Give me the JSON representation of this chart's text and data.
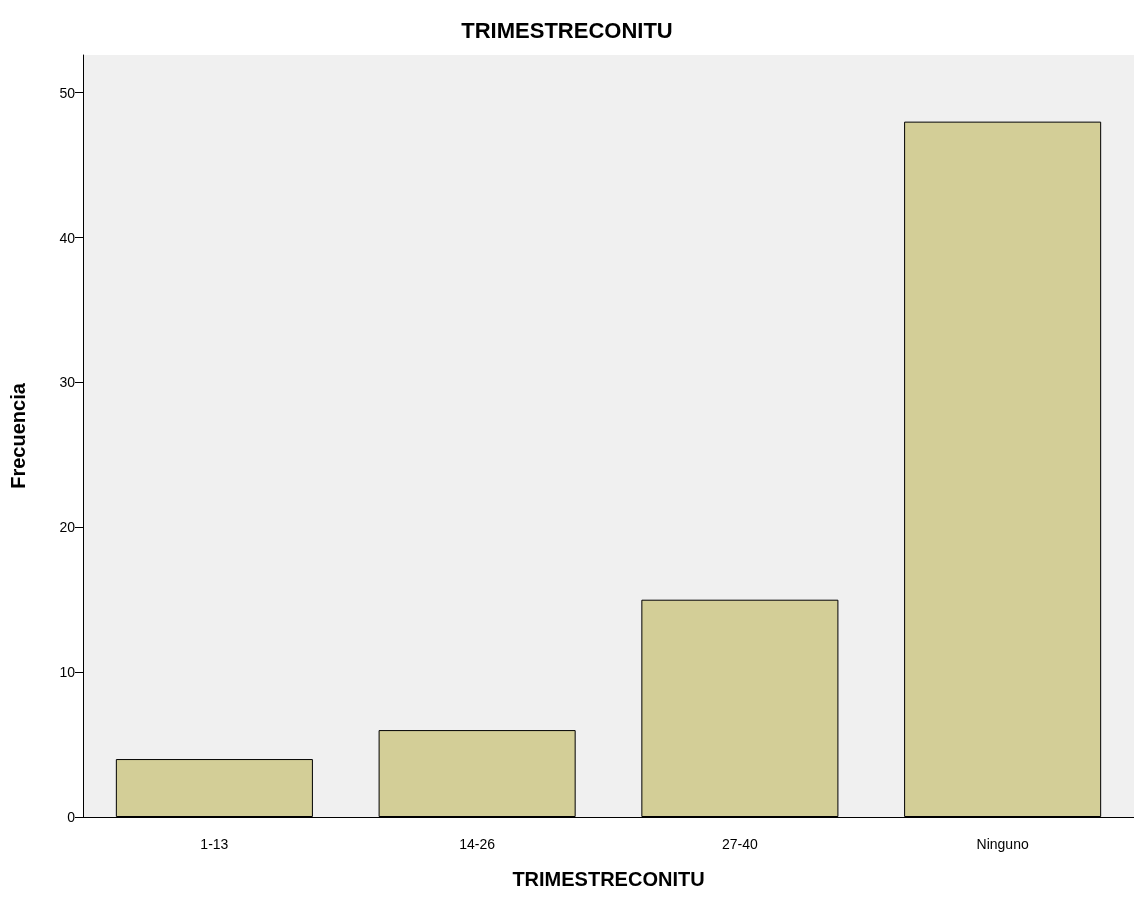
{
  "chart_data": {
    "type": "bar",
    "title": "TRIMESTRECONITU",
    "xlabel": "TRIMESTRECONITU",
    "ylabel": "Frecuencia",
    "categories": [
      "1-13",
      "14-26",
      "27-40",
      "Ninguno"
    ],
    "values": [
      4,
      6,
      15,
      48
    ],
    "color": "#d3ce97",
    "ylim": [
      0,
      52.6
    ],
    "yticks": [
      0,
      10,
      20,
      30,
      40,
      50
    ],
    "grid": false
  }
}
